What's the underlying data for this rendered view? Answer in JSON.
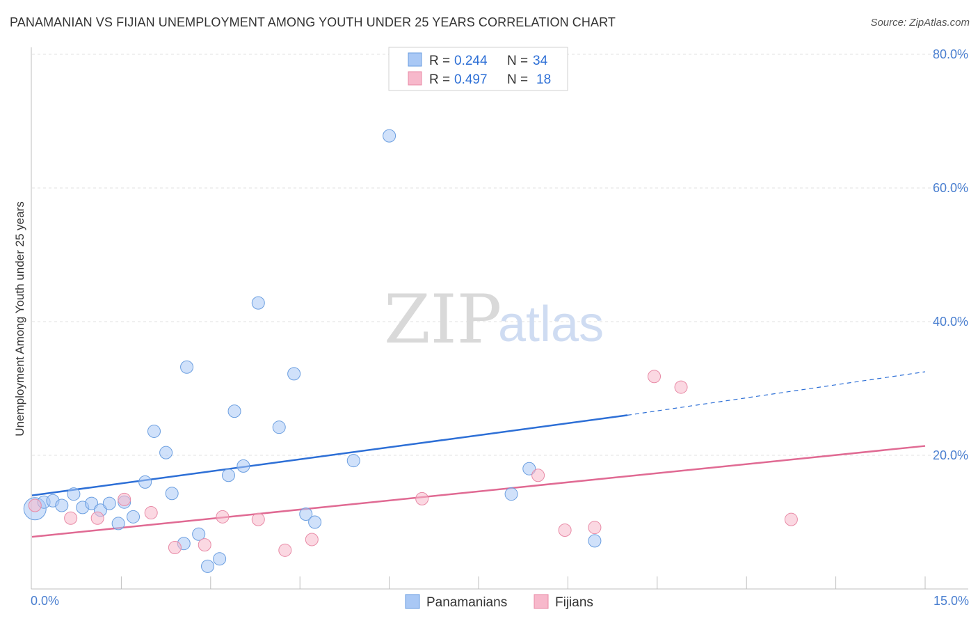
{
  "header": {
    "title": "PANAMANIAN VS FIJIAN UNEMPLOYMENT AMONG YOUTH UNDER 25 YEARS CORRELATION CHART",
    "source": "Source: ZipAtlas.com"
  },
  "watermark": {
    "zip": "ZIP",
    "atlas": "atlas"
  },
  "stats_legend": [
    {
      "r_label": "R =",
      "r_value": "0.244",
      "n_label": "N =",
      "n_value": "34",
      "color": "#a9c8f5"
    },
    {
      "r_label": "R =",
      "r_value": "0.497",
      "n_label": "N =",
      "n_value": "18",
      "color": "#f7b8cb"
    }
  ],
  "chart_data": {
    "type": "scatter",
    "title": "PANAMANIAN VS FIJIAN UNEMPLOYMENT AMONG YOUTH UNDER 25 YEARS CORRELATION CHART",
    "xlabel": "",
    "ylabel": "Unemployment Among Youth under 25 years",
    "xlim": [
      0,
      15
    ],
    "ylim": [
      0,
      80
    ],
    "x_tick_labels": [
      "0.0%",
      "15.0%"
    ],
    "y_ticks": [
      20,
      40,
      60,
      80
    ],
    "y_tick_labels": [
      "20.0%",
      "40.0%",
      "60.0%",
      "80.0%"
    ],
    "grid": true,
    "legend": [
      "Panamanians",
      "Fijians"
    ],
    "series": [
      {
        "name": "Panamanians",
        "color": "#a9c8f5",
        "stroke": "#6a9ee0",
        "r": 0.244,
        "n": 34,
        "trend": {
          "x0": 0,
          "y0": 14.0,
          "x1": 10.0,
          "y1": 26.0,
          "dash_to_x": 15,
          "dash_to_y": 32.5,
          "color": "#2d6fd6"
        },
        "points": [
          [
            0.05,
            12.0,
            16
          ],
          [
            0.2,
            13.0,
            9
          ],
          [
            0.35,
            13.2,
            9
          ],
          [
            0.5,
            12.5,
            9
          ],
          [
            0.7,
            14.2,
            9
          ],
          [
            0.85,
            12.2,
            9
          ],
          [
            1.0,
            12.8,
            9
          ],
          [
            1.15,
            11.8,
            9
          ],
          [
            1.3,
            12.8,
            9
          ],
          [
            1.45,
            9.8,
            9
          ],
          [
            1.55,
            13.0,
            9
          ],
          [
            1.7,
            10.8,
            9
          ],
          [
            1.9,
            16.0,
            9
          ],
          [
            2.05,
            23.6,
            9
          ],
          [
            2.25,
            20.4,
            9
          ],
          [
            2.35,
            14.3,
            9
          ],
          [
            2.55,
            6.8,
            9
          ],
          [
            2.6,
            33.2,
            9
          ],
          [
            2.8,
            8.2,
            9
          ],
          [
            2.95,
            3.4,
            9
          ],
          [
            3.15,
            4.5,
            9
          ],
          [
            3.3,
            17.0,
            9
          ],
          [
            3.4,
            26.6,
            9
          ],
          [
            3.55,
            18.4,
            9
          ],
          [
            3.8,
            42.8,
            9
          ],
          [
            4.15,
            24.2,
            9
          ],
          [
            4.4,
            32.2,
            9
          ],
          [
            4.6,
            11.2,
            9
          ],
          [
            4.75,
            10.0,
            9
          ],
          [
            5.4,
            19.2,
            9
          ],
          [
            6.0,
            67.8,
            9
          ],
          [
            8.05,
            14.2,
            9
          ],
          [
            8.35,
            18.0,
            9
          ],
          [
            9.45,
            7.2,
            9
          ]
        ]
      },
      {
        "name": "Fijians",
        "color": "#f7b8cb",
        "stroke": "#e88aa6",
        "r": 0.497,
        "n": 18,
        "trend": {
          "x0": 0,
          "y0": 7.8,
          "x1": 15,
          "y1": 21.4,
          "color": "#e06a93"
        },
        "points": [
          [
            0.05,
            12.5,
            9
          ],
          [
            0.65,
            10.6,
            9
          ],
          [
            1.1,
            10.6,
            9
          ],
          [
            1.55,
            13.4,
            9
          ],
          [
            2.0,
            11.4,
            9
          ],
          [
            2.4,
            6.2,
            9
          ],
          [
            2.9,
            6.6,
            9
          ],
          [
            3.2,
            10.8,
            9
          ],
          [
            3.8,
            10.4,
            9
          ],
          [
            4.25,
            5.8,
            9
          ],
          [
            4.7,
            7.4,
            9
          ],
          [
            6.55,
            13.5,
            9
          ],
          [
            8.5,
            17.0,
            9
          ],
          [
            8.95,
            8.8,
            9
          ],
          [
            9.45,
            9.2,
            9
          ],
          [
            10.45,
            31.8,
            9
          ],
          [
            10.9,
            30.2,
            9
          ],
          [
            12.75,
            10.4,
            9
          ]
        ]
      }
    ]
  }
}
